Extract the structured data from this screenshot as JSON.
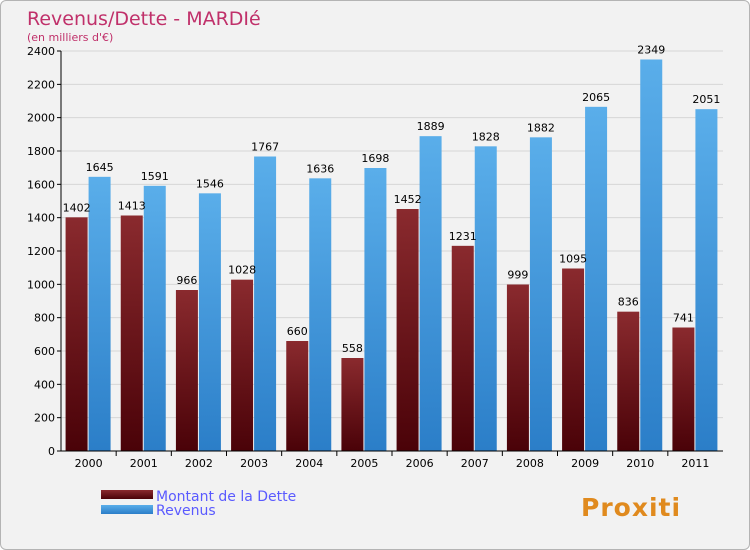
{
  "chart_data": {
    "type": "bar",
    "title": "Revenus/Dette - MARDIé",
    "subtitle": "(en milliers d'€)",
    "categories": [
      "2000",
      "2001",
      "2002",
      "2003",
      "2004",
      "2005",
      "2006",
      "2007",
      "2008",
      "2009",
      "2010",
      "2011"
    ],
    "series": [
      {
        "name": "Montant de la Dette",
        "values": [
          1402,
          1413,
          966,
          1028,
          660,
          558,
          1452,
          1231,
          999,
          1095,
          836,
          741
        ],
        "labels": [
          "1402",
          "1413",
          "966",
          "1028",
          "660",
          "558",
          "1452",
          "1231",
          "999",
          "1095",
          "836",
          "741"
        ],
        "color": "#7a1a1e"
      },
      {
        "name": "Revenus",
        "values": [
          1645,
          1591,
          1546,
          1767,
          1636,
          1698,
          1889,
          1828,
          1882,
          2065,
          2349,
          2051
        ],
        "labels": [
          "1645",
          "1591",
          "1546",
          "1767",
          "1636",
          "1698",
          "1889",
          "1828",
          "1882",
          "2065",
          "2349",
          "2051"
        ],
        "color": "#4aa3e2"
      }
    ],
    "ylim": [
      0,
      2400
    ],
    "yticks": [
      0,
      200,
      400,
      600,
      800,
      1000,
      1200,
      1400,
      1600,
      1800,
      2000,
      2200,
      2400
    ],
    "grid": true,
    "legend": "bottom-left"
  },
  "brand": {
    "logo_text": "Proxiti"
  },
  "colors": {
    "title": "#c0306a",
    "legend_text": "#5a5aff",
    "axis": "#000000"
  }
}
